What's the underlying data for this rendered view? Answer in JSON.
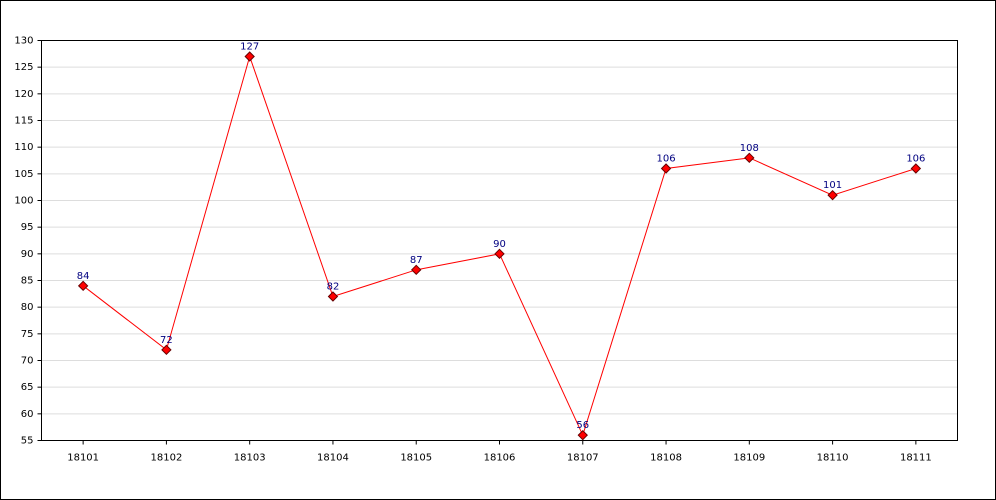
{
  "chart_data": {
    "type": "line",
    "categories": [
      "18101",
      "18102",
      "18103",
      "18104",
      "18105",
      "18106",
      "18107",
      "18108",
      "18109",
      "18110",
      "18111"
    ],
    "values": [
      84,
      72,
      127,
      82,
      87,
      90,
      56,
      106,
      108,
      101,
      106
    ],
    "color": "#ff0000",
    "ylim": [
      55,
      130
    ],
    "yticks": [
      55,
      60,
      65,
      70,
      75,
      80,
      85,
      90,
      95,
      100,
      105,
      110,
      115,
      120,
      125,
      130
    ],
    "grid": true
  }
}
